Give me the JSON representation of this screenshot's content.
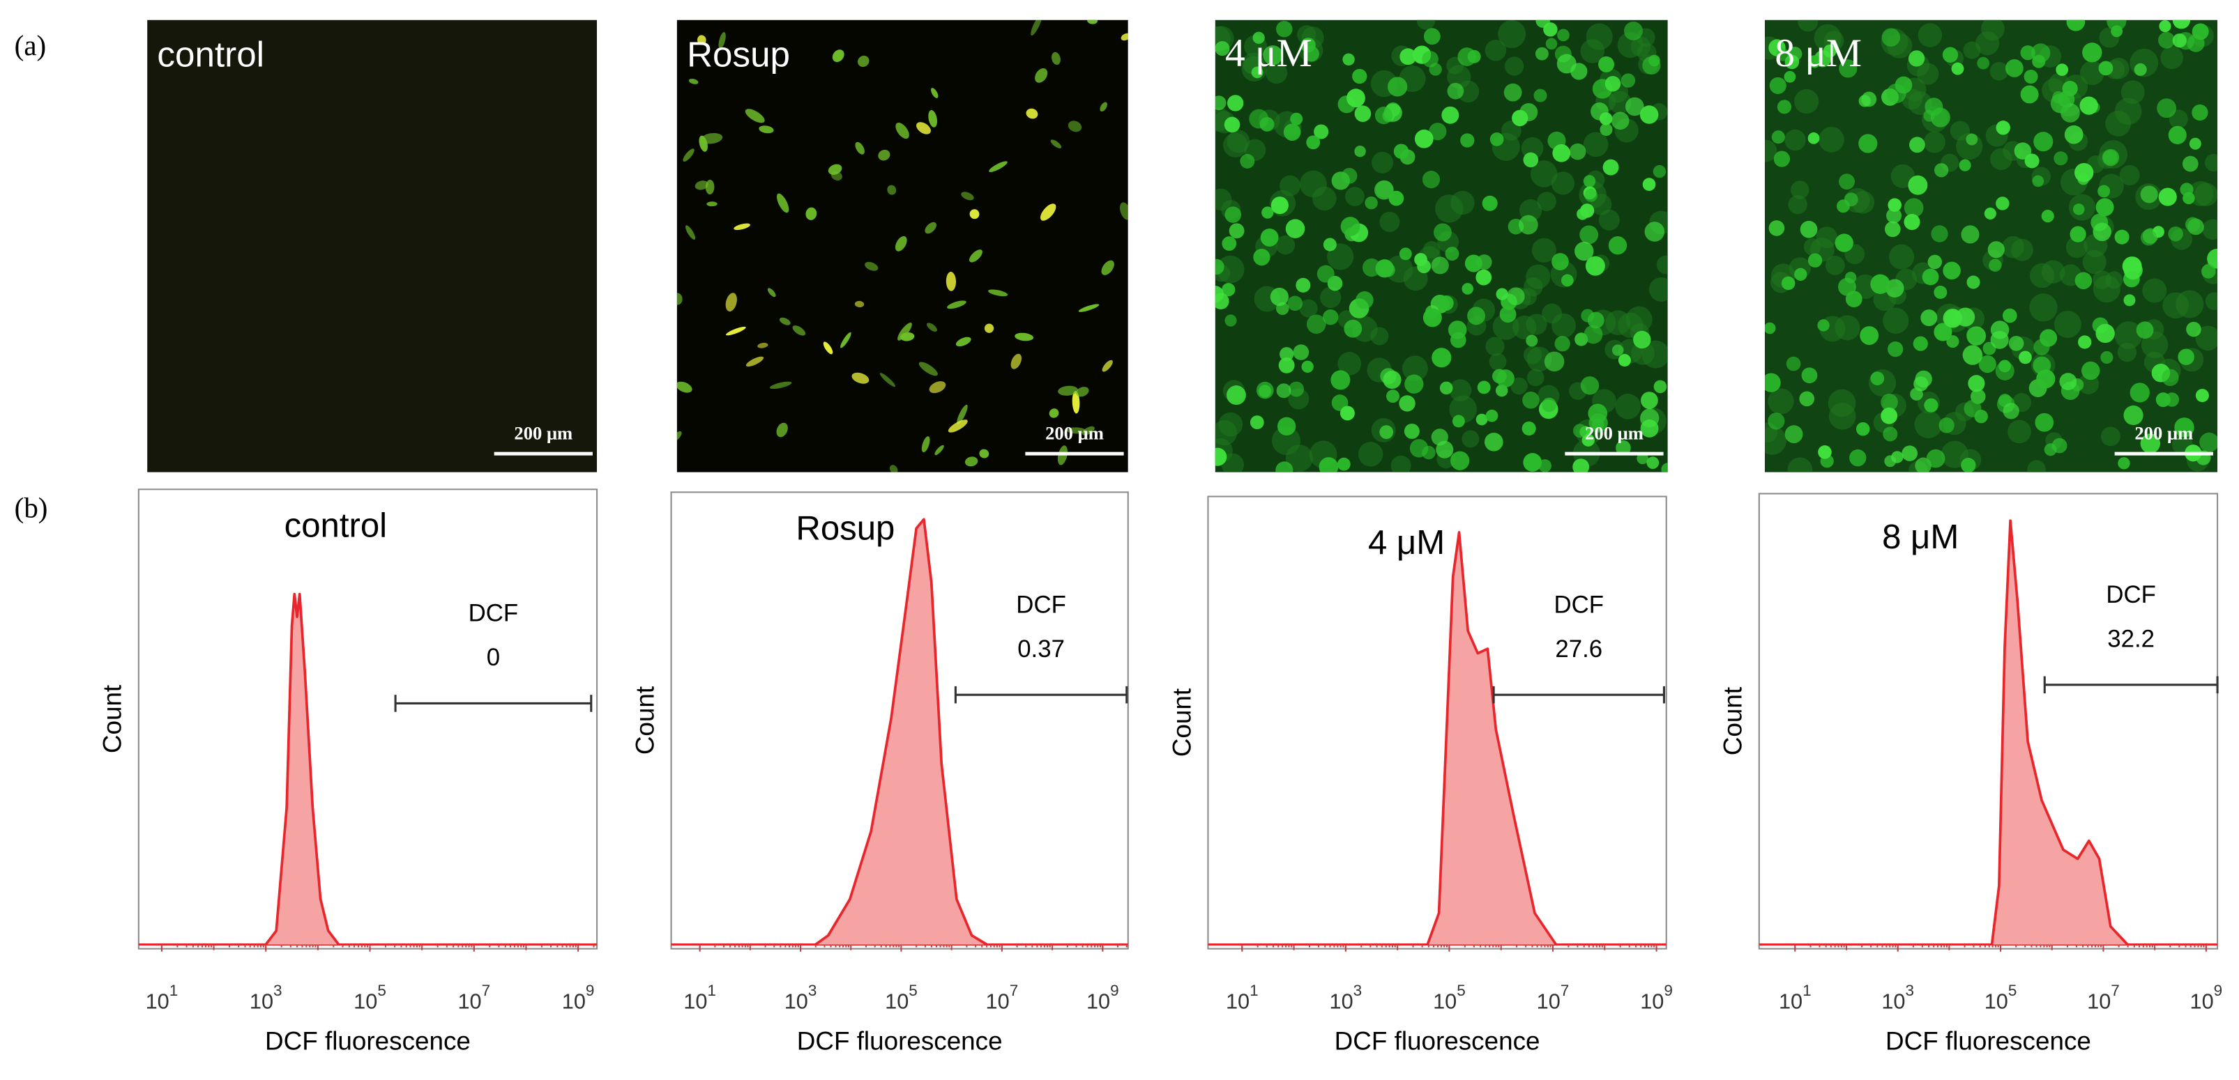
{
  "panel_labels": [
    "(a)",
    "(b)"
  ],
  "images": [
    {
      "label": "control",
      "scale_bar": "200 μm"
    },
    {
      "label": "Rosup",
      "scale_bar": "200 μm"
    },
    {
      "label": "4 μM",
      "scale_bar": "200 μm"
    },
    {
      "label": "8 μM",
      "scale_bar": "200 μm"
    }
  ],
  "chart_data": [
    {
      "type": "area",
      "title": "control",
      "xlabel": "DCF fluorescence",
      "ylabel": "Count",
      "log_x": true,
      "color": "#e8262b",
      "fill": "#f5a3a3",
      "x": [
        1000,
        1585,
        2512,
        3162,
        3548,
        3981,
        4467,
        5623,
        7943,
        11220,
        15849,
        25119
      ],
      "values": [
        0,
        3,
        30,
        70,
        77,
        72,
        77,
        60,
        30,
        10,
        3,
        0
      ],
      "xlim": [
        3.6,
        2300000000
      ],
      "ylim": [
        0,
        100
      ],
      "xticks": [
        {
          "value": 10,
          "label": "10^1"
        },
        {
          "value": 1000,
          "label": "10^3"
        },
        {
          "value": 100000,
          "label": "10^5"
        },
        {
          "value": 10000000,
          "label": "10^7"
        },
        {
          "value": 1000000000,
          "label": "10^9"
        }
      ],
      "gate": {
        "label": "DCF",
        "value": 0,
        "range": [
          309000,
          1780000000
        ]
      }
    },
    {
      "type": "area",
      "title": "Rosup",
      "xlabel": "DCF fluorescence",
      "ylabel": "Count",
      "log_x": true,
      "color": "#e8262b",
      "fill": "#f5a3a3",
      "x": [
        1995,
        3548,
        9550,
        25119,
        63096,
        125893,
        199526,
        281838,
        398107,
        630957,
        1258925,
        2511886,
        5011872
      ],
      "values": [
        0,
        2,
        10,
        25,
        50,
        75,
        92,
        94,
        80,
        40,
        10,
        2,
        0
      ],
      "xlim": [
        2.7,
        3200000000
      ],
      "ylim": [
        0,
        100
      ],
      "xticks": [
        {
          "value": 10,
          "label": "10^1"
        },
        {
          "value": 1000,
          "label": "10^3"
        },
        {
          "value": 100000,
          "label": "10^5"
        },
        {
          "value": 10000000,
          "label": "10^7"
        },
        {
          "value": 1000000000,
          "label": "10^9"
        }
      ],
      "gate": {
        "label": "DCF",
        "value": 0.37,
        "range": [
          1200000,
          3000000000
        ]
      }
    },
    {
      "type": "area",
      "title": "4 μM",
      "xlabel": "DCF fluorescence",
      "ylabel": "Count",
      "log_x": true,
      "color": "#e8262b",
      "fill": "#f5a3a3",
      "x": [
        38019,
        63096,
        91201,
        117490,
        154882,
        229087,
        354813,
        549541,
        794328,
        1737801,
        4466836,
        11481536
      ],
      "values": [
        0,
        7,
        51,
        82,
        92,
        70,
        65,
        66,
        48,
        29,
        7,
        0
      ],
      "xlim": [
        2.2,
        1550000000
      ],
      "ylim": [
        0,
        100
      ],
      "xticks": [
        {
          "value": 10,
          "label": "10^1"
        },
        {
          "value": 1000,
          "label": "10^3"
        },
        {
          "value": 100000,
          "label": "10^5"
        },
        {
          "value": 10000000,
          "label": "10^7"
        },
        {
          "value": 1000000000,
          "label": "10^9"
        }
      ],
      "gate": {
        "label": "DCF",
        "value": 27.6,
        "range": [
          720000,
          1400000000
        ]
      }
    },
    {
      "type": "area",
      "title": "8 μM",
      "xlabel": "DCF fluorescence",
      "ylabel": "Count",
      "log_x": true,
      "color": "#e8262b",
      "fill": "#f5a3a3",
      "x": [
        67608,
        93325,
        120226,
        154882,
        213796,
        338844,
        630957,
        1659587,
        3162278,
        5248075,
        8317638,
        13803843,
        29512092
      ],
      "values": [
        0,
        13,
        66,
        94,
        76,
        45,
        32,
        21,
        19,
        23,
        19,
        4,
        0
      ],
      "xlim": [
        2,
        1660000000
      ],
      "ylim": [
        0,
        100
      ],
      "xticks": [
        {
          "value": 10,
          "label": "10^1"
        },
        {
          "value": 1000,
          "label": "10^3"
        },
        {
          "value": 100000,
          "label": "10^5"
        },
        {
          "value": 10000000,
          "label": "10^7"
        },
        {
          "value": 1000000000,
          "label": "10^9"
        }
      ],
      "gate": {
        "label": "DCF",
        "value": 32.2,
        "range": [
          720000,
          1660000000
        ]
      }
    }
  ]
}
